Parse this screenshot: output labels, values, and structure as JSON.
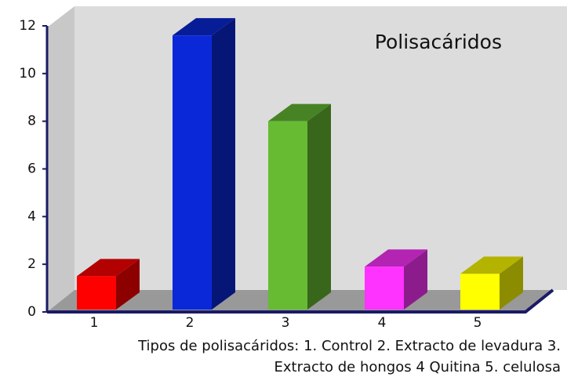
{
  "chart_data": {
    "type": "bar3d",
    "annotation": "Polisacáridos",
    "x_label": "Tipos de polisacáridos:  1. Control  2. Extracto de levadura  3. Extracto de hongos  4 Quitina  5. celulosa",
    "categories": [
      "1",
      "2",
      "3",
      "4",
      "5"
    ],
    "values": [
      1.5,
      11.6,
      8.0,
      1.9,
      1.6
    ],
    "colors": [
      "#ff0000",
      "#0a28d8",
      "#66bb33",
      "#ff33ff",
      "#ffff00"
    ],
    "ylim": [
      0,
      12
    ],
    "yticks": [
      0,
      2,
      4,
      6,
      8,
      10,
      12
    ]
  }
}
